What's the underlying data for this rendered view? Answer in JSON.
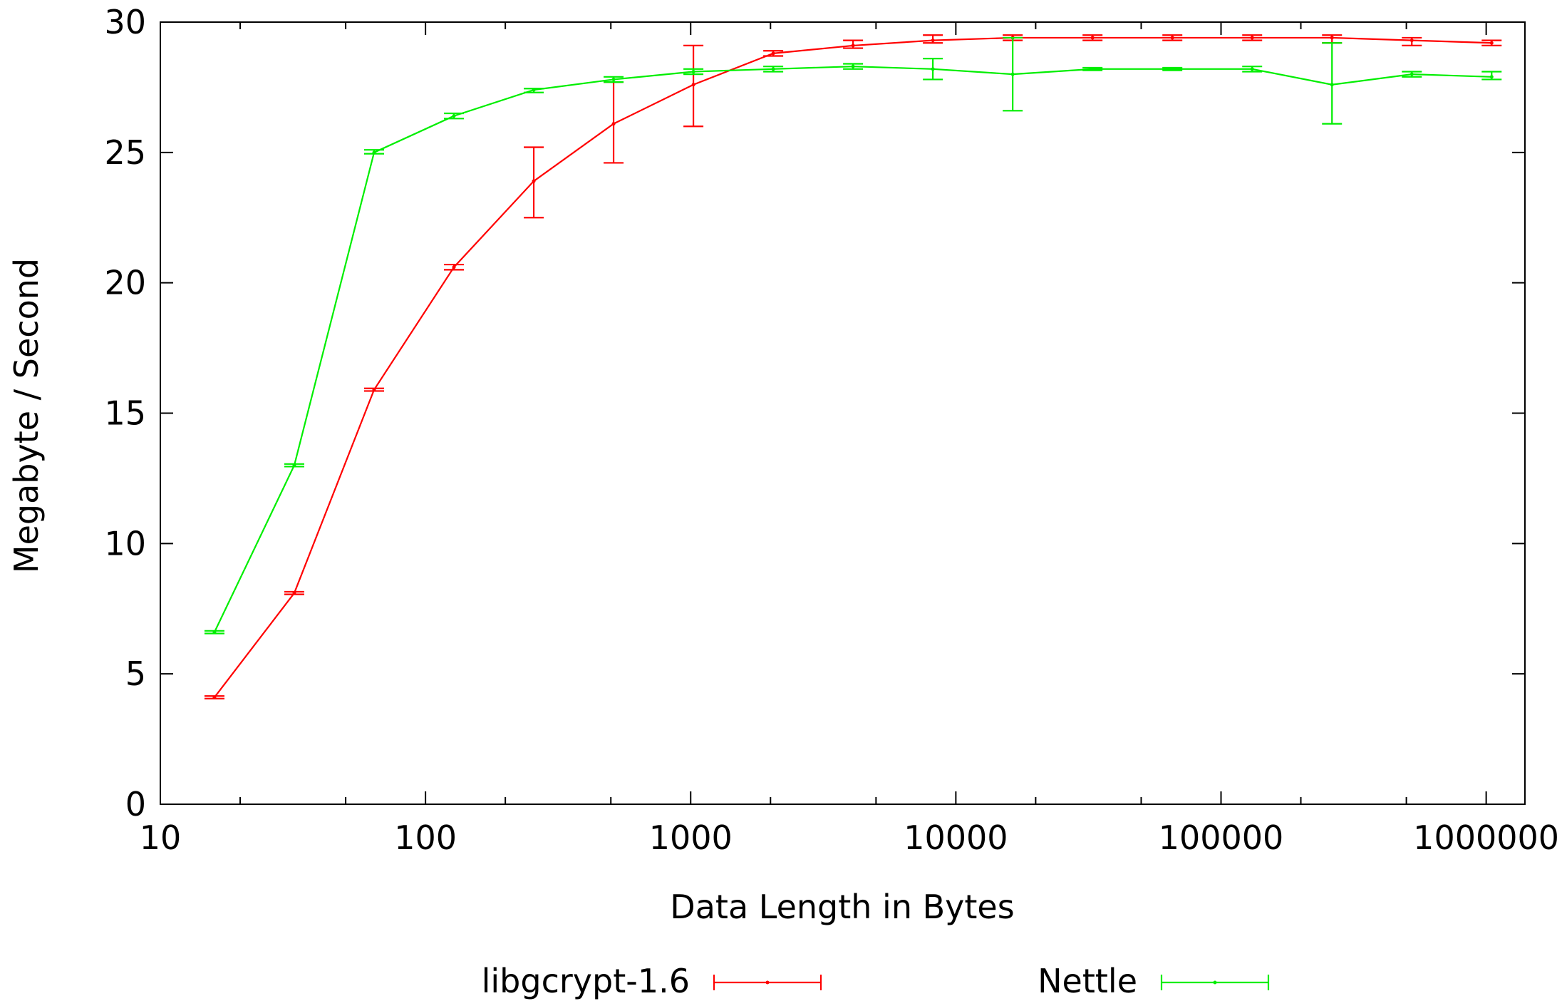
{
  "chart_data": {
    "type": "line",
    "title": "",
    "xlabel": "Data Length in Bytes",
    "ylabel": "Megabyte / Second",
    "xscale": "log",
    "xlim": [
      10,
      1400000
    ],
    "ylim": [
      0,
      30
    ],
    "x_ticks": [
      {
        "value": 10,
        "label": "10"
      },
      {
        "value": 100,
        "label": "100"
      },
      {
        "value": 1000,
        "label": "1000"
      },
      {
        "value": 10000,
        "label": "10000"
      },
      {
        "value": 100000,
        "label": "100000"
      },
      {
        "value": 1000000,
        "label": "1000000"
      }
    ],
    "y_ticks": [
      {
        "value": 0,
        "label": "0"
      },
      {
        "value": 5,
        "label": "5"
      },
      {
        "value": 10,
        "label": "10"
      },
      {
        "value": 15,
        "label": "15"
      },
      {
        "value": 20,
        "label": "20"
      },
      {
        "value": 25,
        "label": "25"
      },
      {
        "value": 30,
        "label": "30"
      }
    ],
    "grid": false,
    "legend_position": "bottom",
    "series": [
      {
        "name": "libgcrypt-1.6",
        "color": "#ff0000",
        "points": [
          {
            "x": 16,
            "y": 4.1,
            "low": 4.05,
            "high": 4.15
          },
          {
            "x": 32,
            "y": 8.1,
            "low": 8.05,
            "high": 8.15
          },
          {
            "x": 64,
            "y": 15.9,
            "low": 15.85,
            "high": 15.95
          },
          {
            "x": 128,
            "y": 20.6,
            "low": 20.5,
            "high": 20.7
          },
          {
            "x": 256,
            "y": 23.9,
            "low": 22.5,
            "high": 25.2
          },
          {
            "x": 512,
            "y": 26.1,
            "low": 24.6,
            "high": 27.7
          },
          {
            "x": 1024,
            "y": 27.6,
            "low": 26.0,
            "high": 29.1
          },
          {
            "x": 2048,
            "y": 28.8,
            "low": 28.7,
            "high": 28.9
          },
          {
            "x": 4096,
            "y": 29.1,
            "low": 29.0,
            "high": 29.3
          },
          {
            "x": 8192,
            "y": 29.3,
            "low": 29.2,
            "high": 29.5
          },
          {
            "x": 16384,
            "y": 29.4,
            "low": 29.3,
            "high": 29.5
          },
          {
            "x": 32768,
            "y": 29.4,
            "low": 29.3,
            "high": 29.5
          },
          {
            "x": 65536,
            "y": 29.4,
            "low": 29.3,
            "high": 29.5
          },
          {
            "x": 131072,
            "y": 29.4,
            "low": 29.3,
            "high": 29.5
          },
          {
            "x": 262144,
            "y": 29.4,
            "low": 29.2,
            "high": 29.5
          },
          {
            "x": 524288,
            "y": 29.3,
            "low": 29.1,
            "high": 29.4
          },
          {
            "x": 1048576,
            "y": 29.2,
            "low": 29.1,
            "high": 29.3
          }
        ]
      },
      {
        "name": "Nettle",
        "color": "#00ee00",
        "points": [
          {
            "x": 16,
            "y": 6.6,
            "low": 6.55,
            "high": 6.65
          },
          {
            "x": 32,
            "y": 13.0,
            "low": 12.95,
            "high": 13.05
          },
          {
            "x": 64,
            "y": 25.0,
            "low": 24.95,
            "high": 25.1
          },
          {
            "x": 128,
            "y": 26.4,
            "low": 26.3,
            "high": 26.5
          },
          {
            "x": 256,
            "y": 27.4,
            "low": 27.3,
            "high": 27.45
          },
          {
            "x": 512,
            "y": 27.8,
            "low": 27.7,
            "high": 27.9
          },
          {
            "x": 1024,
            "y": 28.1,
            "low": 28.0,
            "high": 28.2
          },
          {
            "x": 2048,
            "y": 28.2,
            "low": 28.1,
            "high": 28.3
          },
          {
            "x": 4096,
            "y": 28.3,
            "low": 28.2,
            "high": 28.4
          },
          {
            "x": 8192,
            "y": 28.2,
            "low": 27.8,
            "high": 28.6
          },
          {
            "x": 16384,
            "y": 28.0,
            "low": 26.6,
            "high": 29.4
          },
          {
            "x": 32768,
            "y": 28.2,
            "low": 28.15,
            "high": 28.25
          },
          {
            "x": 65536,
            "y": 28.2,
            "low": 28.15,
            "high": 28.25
          },
          {
            "x": 131072,
            "y": 28.2,
            "low": 28.1,
            "high": 28.3
          },
          {
            "x": 262144,
            "y": 27.6,
            "low": 26.1,
            "high": 29.2
          },
          {
            "x": 524288,
            "y": 28.0,
            "low": 27.9,
            "high": 28.1
          },
          {
            "x": 1048576,
            "y": 27.9,
            "low": 27.8,
            "high": 28.1
          }
        ]
      }
    ]
  }
}
